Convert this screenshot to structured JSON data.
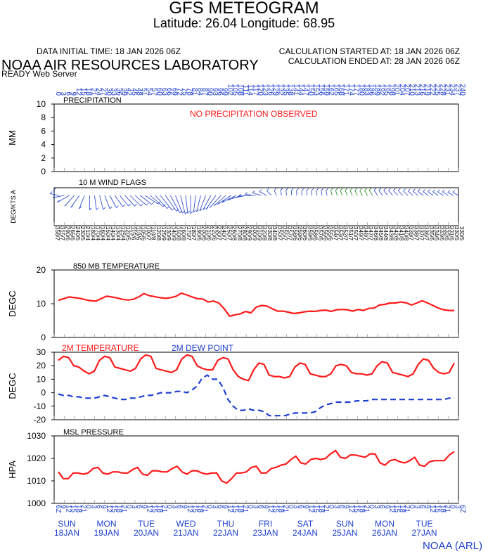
{
  "header": {
    "title": "GFS METEOGRAM",
    "location": "Latitude: 26.04 Longitude:  68.95",
    "init_time": "DATA INITIAL TIME: 18 JAN 2026 06Z",
    "calc_started": "CALCULATION STARTED AT: 18 JAN 2026 06Z",
    "calc_ended": "CALCULATION ENDED AT: 28 JAN 2026 06Z",
    "lab": "NOAA AIR RESOURCES LABORATORY",
    "server": "READY Web Server",
    "credit": "NOAA (ARL)"
  },
  "colors": {
    "red": "#ff1a1a",
    "blue": "#1f3fd0",
    "green": "#1a8a1a",
    "frame": "#000000"
  },
  "chart_data": [
    {
      "type": "bar",
      "title": "PRECIPITATION",
      "ylabel": "MM",
      "ylim": [
        0,
        10
      ],
      "yticks": [
        "10",
        "8",
        "6",
        "4",
        "2",
        "0"
      ],
      "annotation": "NO PRECIPITATION OBSERVED",
      "values": []
    },
    {
      "type": "scatter",
      "title": "10 M  WIND FLAGS",
      "ylabel": "DEG/KTS  A",
      "direction_deg": [
        358,
        315,
        290,
        265,
        240,
        230,
        210,
        180,
        170,
        160,
        150,
        140,
        130,
        125,
        120,
        115,
        110,
        105,
        100,
        110,
        120,
        125,
        130,
        140,
        150,
        160,
        170,
        180,
        190,
        200,
        210,
        220,
        230,
        240,
        250,
        260,
        270,
        280,
        290,
        300,
        310,
        320,
        330,
        340,
        350,
        355,
        357,
        358,
        359,
        360,
        359,
        358,
        357,
        356,
        355,
        354,
        353,
        352,
        351,
        350,
        349,
        348,
        347,
        346,
        345,
        344,
        343,
        342,
        341,
        340,
        339,
        338,
        337,
        336,
        335,
        334,
        333,
        332,
        331,
        330,
        330
      ],
      "speed_kts": [
        7,
        7,
        6,
        6,
        5,
        5,
        4,
        4,
        4,
        4,
        4,
        4,
        4,
        4,
        5,
        6,
        6,
        6,
        7,
        8,
        8,
        9,
        9,
        9,
        8,
        8,
        7,
        7,
        6,
        6,
        6,
        6,
        7,
        7,
        7,
        8,
        8,
        8,
        9,
        9,
        9,
        8,
        8,
        8,
        7,
        7,
        7,
        6,
        6,
        6,
        6,
        6,
        6,
        6,
        6,
        7,
        7,
        7,
        7,
        7,
        7,
        7,
        7,
        8,
        8,
        8,
        8,
        8,
        8,
        8,
        7,
        7,
        7,
        7,
        6,
        6,
        6,
        6,
        6,
        5,
        5
      ]
    },
    {
      "type": "line",
      "title": "850 MB  TEMPERATURE",
      "ylabel": "DEGC",
      "ylim": [
        0,
        20
      ],
      "yticks": [
        "20",
        "10",
        "0"
      ],
      "series": [
        {
          "values": [
            11,
            11.5,
            12,
            11.8,
            11.6,
            11.2,
            10.9,
            10.8,
            11.5,
            12.2,
            12,
            11.7,
            11.3,
            11.1,
            11.3,
            12,
            13,
            12.4,
            12.1,
            11.8,
            11.6,
            11.8,
            12.2,
            13.1,
            12.6,
            12,
            11.5,
            11.4,
            10.5,
            10.8,
            10.2,
            8.5,
            6.3,
            6.7,
            7,
            7.7,
            7.3,
            9,
            9.5,
            9.3,
            8.5,
            7.8,
            7.8,
            7.5,
            7.1,
            7.3,
            7.6,
            7.8,
            7.7,
            8,
            8.1,
            7.7,
            8.2,
            8.3,
            8.2,
            7.8,
            8.3,
            8,
            8.6,
            8.7,
            9.6,
            9.8,
            10.2,
            10.2,
            10.5,
            10.3,
            9.6,
            10.2,
            10.9,
            10.2,
            9.5,
            8.7,
            8.2,
            8,
            8
          ]
        }
      ]
    },
    {
      "type": "line",
      "title": "",
      "ylabel": "DEGC",
      "ylim": [
        -20,
        30
      ],
      "yticks": [
        "30",
        "20",
        "10",
        "0",
        "-10",
        "-20"
      ],
      "series": [
        {
          "name": "2M TEMPERATURE",
          "values": [
            24,
            27,
            26,
            20,
            19,
            16,
            14,
            16,
            24,
            27,
            26,
            19,
            18,
            17,
            16,
            18,
            25,
            28,
            27,
            18,
            17,
            16,
            15,
            17,
            25,
            28,
            27,
            20,
            18,
            17,
            17,
            24,
            26,
            25,
            17,
            12,
            10,
            9,
            17,
            22,
            21,
            13,
            12,
            12,
            11,
            12,
            19,
            22,
            21,
            14,
            13,
            12,
            12,
            14,
            20,
            21,
            20,
            15,
            14,
            14,
            13,
            14,
            20,
            23,
            22,
            15,
            14,
            13,
            12,
            14,
            21,
            25,
            24,
            18,
            15,
            14,
            15,
            22
          ]
        },
        {
          "name": "2M   DEW POINT",
          "values": [
            -1,
            -2,
            -2,
            -3,
            -3,
            -4,
            -4,
            -4,
            -3,
            -2,
            -3,
            -4,
            -5,
            -5,
            -4,
            -4,
            -3,
            -2,
            -2,
            -1,
            0,
            0,
            0,
            1,
            1,
            0,
            2,
            5,
            11,
            13,
            10,
            10,
            4,
            -5,
            -10,
            -13,
            -13,
            -12,
            -13,
            -13,
            -14,
            -17,
            -17,
            -17,
            -17,
            -16,
            -15,
            -15,
            -15,
            -15,
            -14,
            -11,
            -9,
            -8,
            -7,
            -7,
            -7,
            -7,
            -6,
            -6,
            -6,
            -5,
            -5,
            -5,
            -5,
            -5,
            -5,
            -5,
            -5,
            -5,
            -5,
            -5,
            -5,
            -5,
            -5,
            -5,
            -4,
            -4
          ]
        }
      ]
    },
    {
      "type": "line",
      "title": "MSL PRESSURE",
      "ylabel": "HPA",
      "ylim": [
        1000,
        1030
      ],
      "yticks": [
        "1030",
        "1020",
        "1010",
        "1000"
      ],
      "series": [
        {
          "values": [
            1014,
            1011,
            1011,
            1013.5,
            1013.5,
            1013,
            1013.5,
            1015.5,
            1016,
            1013.5,
            1013,
            1014,
            1014,
            1013.5,
            1013.5,
            1015,
            1016,
            1013,
            1012.5,
            1014.5,
            1014.5,
            1014,
            1014,
            1015.5,
            1016.5,
            1014,
            1013,
            1014.5,
            1014.5,
            1013.5,
            1013,
            1013.5,
            1013.5,
            1010,
            1009,
            1011,
            1013.5,
            1013.5,
            1014,
            1016,
            1016.5,
            1013.5,
            1013.5,
            1015.5,
            1016,
            1017,
            1017.5,
            1019.5,
            1021,
            1018,
            1017.5,
            1019.5,
            1020,
            1019.5,
            1020,
            1022,
            1023.5,
            1020.5,
            1020,
            1021.5,
            1021.5,
            1021,
            1020.5,
            1022,
            1022,
            1018,
            1017,
            1019,
            1019.5,
            1018.5,
            1018,
            1019,
            1020.5,
            1017,
            1016.5,
            1018.5,
            1019,
            1019,
            1019,
            1021.5,
            1023
          ]
        }
      ]
    }
  ],
  "time_axis": {
    "top_hours": [
      "0",
      "3",
      "6",
      "9",
      "12",
      "15",
      "18",
      "21",
      "24",
      "27",
      "30",
      "33",
      "36",
      "39",
      "42",
      "45",
      "48",
      "51",
      "54",
      "57",
      "60",
      "63",
      "66",
      "69",
      "72",
      "75",
      "78",
      "81",
      "84",
      "87",
      "90",
      "93",
      "96",
      "99",
      "102",
      "105",
      "108",
      "111",
      "114",
      "117",
      "120",
      "123",
      "126",
      "129",
      "132",
      "135",
      "138",
      "141",
      "144",
      "147",
      "150",
      "153",
      "156",
      "159",
      "162",
      "165",
      "168",
      "171",
      "174",
      "177",
      "180",
      "183",
      "186",
      "189",
      "192",
      "195",
      "198",
      "201",
      "204",
      "207",
      "210",
      "213",
      "216",
      "219",
      "222",
      "225",
      "228",
      "231",
      "234",
      "237",
      "240"
    ],
    "bottom_hours": [
      "6Z",
      "9",
      "12",
      "15",
      "18",
      "21",
      "0",
      "3",
      "6",
      "9",
      "12",
      "15",
      "18",
      "21",
      "0",
      "3",
      "6",
      "9",
      "12",
      "15",
      "18",
      "21",
      "0",
      "3",
      "6",
      "9",
      "12",
      "15",
      "18",
      "21",
      "0",
      "3",
      "6",
      "9",
      "12",
      "15",
      "18",
      "21",
      "0",
      "3",
      "6",
      "9",
      "12",
      "15",
      "18",
      "21",
      "0",
      "3",
      "6",
      "9",
      "12",
      "15",
      "18",
      "21",
      "0",
      "3",
      "6",
      "9",
      "12",
      "15",
      "18",
      "21",
      "0",
      "3",
      "6",
      "9",
      "12",
      "15",
      "18",
      "21",
      "0",
      "3",
      "6",
      "9",
      "12",
      "15",
      "18",
      "21",
      "0",
      "3",
      "6Z"
    ],
    "days": [
      {
        "dow": "SUN",
        "date": "18JAN"
      },
      {
        "dow": "MON",
        "date": "19JAN"
      },
      {
        "dow": "TUE",
        "date": "20JAN"
      },
      {
        "dow": "WED",
        "date": "21JAN"
      },
      {
        "dow": "THU",
        "date": "22JAN"
      },
      {
        "dow": "FRI",
        "date": "23JAN"
      },
      {
        "dow": "SAT",
        "date": "24JAN"
      },
      {
        "dow": "SUN",
        "date": "25JAN"
      },
      {
        "dow": "MON",
        "date": "26JAN"
      },
      {
        "dow": "TUE",
        "date": "27JAN"
      }
    ]
  }
}
